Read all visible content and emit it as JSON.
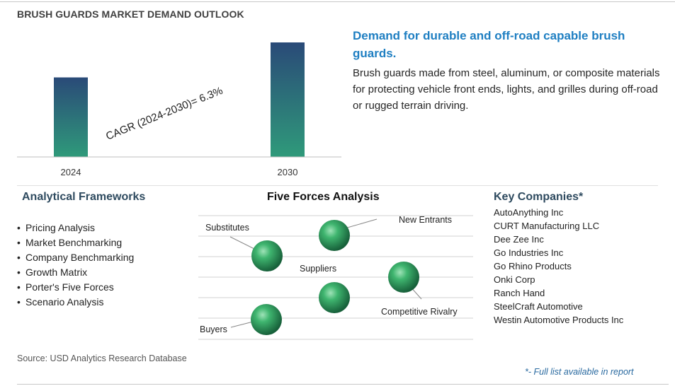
{
  "title": "BRUSH GUARDS MARKET DEMAND OUTLOOK",
  "chart_data": {
    "type": "bar",
    "categories": [
      "2024",
      "2030"
    ],
    "values": [
      1.0,
      1.44
    ],
    "cagr_label": "CAGR (2024-2030)=",
    "cagr_value": "6.3%",
    "ylim": [
      0,
      1.6
    ]
  },
  "headline": "Demand for durable and off-road capable brush guards.",
  "description": "Brush guards made from steel, aluminum, or composite materials for protecting vehicle front ends, lights, and grilles during off-road or rugged terrain driving.",
  "frameworks": {
    "heading": "Analytical Frameworks",
    "items": [
      "Pricing Analysis",
      "Market Benchmarking",
      "Company Benchmarking",
      "Growth Matrix",
      "Porter's Five Forces",
      "Scenario Analysis"
    ]
  },
  "five_forces": {
    "heading": "Five Forces Analysis",
    "labels": [
      "Substitutes",
      "New Entrants",
      "Suppliers",
      "Competitive Rivalry",
      "Buyers"
    ]
  },
  "companies": {
    "heading": "Key Companies*",
    "items": [
      "AutoAnything Inc",
      "CURT Manufacturing LLC",
      "Dee Zee Inc",
      "Go Industries Inc",
      "Go Rhino Products",
      "Onki Corp",
      "Ranch Hand",
      "SteelCraft Automotive",
      "Westin Automotive Products Inc"
    ]
  },
  "source": "Source: USD Analytics Research Database",
  "footnote": "*- Full list available in report",
  "colors": {
    "bar_top": "#2a4a78",
    "bar_bottom": "#2f9a7a",
    "sphere": "#2e9a5e",
    "heading_blue": "#1f7fc2"
  }
}
